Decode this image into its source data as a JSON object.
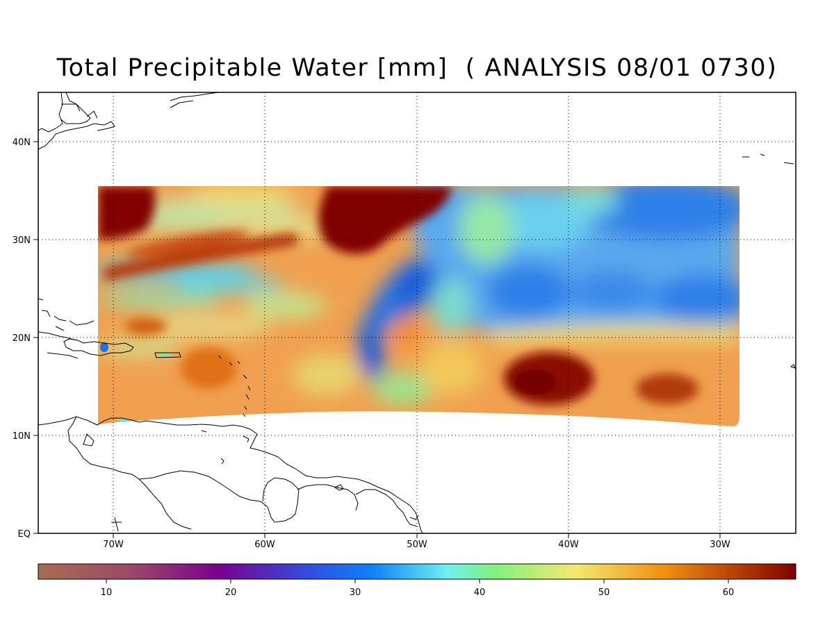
{
  "title": "Total Precipitable Water [mm]  ( ANALYSIS 08/01 0730)",
  "map": {
    "lon_ticks": [
      "70W",
      "60W",
      "50W",
      "40W",
      "30W"
    ],
    "lat_ticks": [
      "40N",
      "30N",
      "20N",
      "10N",
      "EQ"
    ],
    "grid": "dotted",
    "extent": {
      "lon": [
        "75W",
        "25W"
      ],
      "lat": [
        "EQ",
        "45N"
      ]
    },
    "field": "Total Precipitable Water",
    "units": "mm"
  },
  "colorbar": {
    "ticks": [
      "10",
      "20",
      "30",
      "40",
      "50",
      "60"
    ],
    "range": [
      5,
      66
    ],
    "colors": [
      "#a86c52",
      "#8a2a72",
      "#7a0090",
      "#1060f0",
      "#6ef0f0",
      "#80f080",
      "#f4e870",
      "#f08c10",
      "#800000"
    ]
  }
}
